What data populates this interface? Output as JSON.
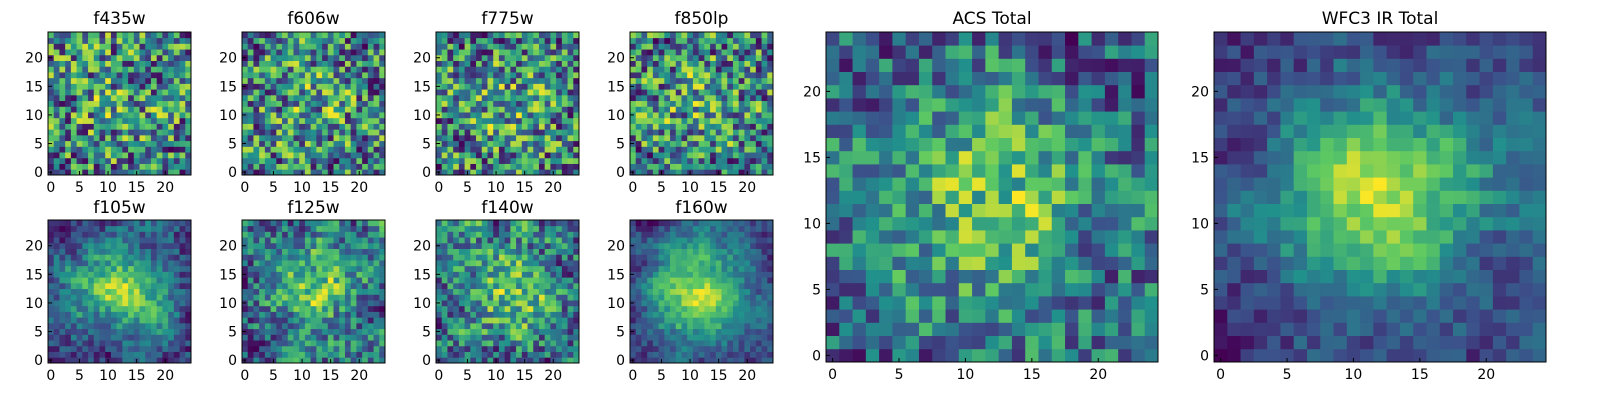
{
  "chart_data": [
    {
      "type": "heatmap",
      "title": "f435w",
      "n": 25,
      "seed": 11,
      "colormap": "viridis",
      "x_ticks": [
        0,
        5,
        10,
        15,
        20
      ],
      "y_ticks": [
        0,
        5,
        10,
        15,
        20
      ],
      "xlim": [
        0,
        24
      ],
      "ylim": [
        0,
        24
      ],
      "smooth": 0.15,
      "blob": 0.1,
      "noise": 0.75,
      "grid": false
    },
    {
      "type": "heatmap",
      "title": "f606w",
      "n": 25,
      "seed": 12,
      "colormap": "viridis",
      "x_ticks": [
        0,
        5,
        10,
        15,
        20
      ],
      "y_ticks": [
        0,
        5,
        10,
        15,
        20
      ],
      "xlim": [
        0,
        24
      ],
      "ylim": [
        0,
        24
      ],
      "smooth": 0.15,
      "blob": 0.12,
      "noise": 0.73,
      "grid": false
    },
    {
      "type": "heatmap",
      "title": "f775w",
      "n": 25,
      "seed": 13,
      "colormap": "viridis",
      "x_ticks": [
        0,
        5,
        10,
        15,
        20
      ],
      "y_ticks": [
        0,
        5,
        10,
        15,
        20
      ],
      "xlim": [
        0,
        24
      ],
      "ylim": [
        0,
        24
      ],
      "smooth": 0.18,
      "blob": 0.15,
      "noise": 0.67,
      "grid": false
    },
    {
      "type": "heatmap",
      "title": "f850lp",
      "n": 25,
      "seed": 14,
      "colormap": "viridis",
      "x_ticks": [
        0,
        5,
        10,
        15,
        20
      ],
      "y_ticks": [
        0,
        5,
        10,
        15,
        20
      ],
      "xlim": [
        0,
        24
      ],
      "ylim": [
        0,
        24
      ],
      "smooth": 0.15,
      "blob": 0.12,
      "noise": 0.73,
      "grid": false
    },
    {
      "type": "heatmap",
      "title": "f105w",
      "n": 25,
      "seed": 21,
      "colormap": "viridis",
      "x_ticks": [
        0,
        5,
        10,
        15,
        20
      ],
      "y_ticks": [
        0,
        5,
        10,
        15,
        20
      ],
      "xlim": [
        0,
        24
      ],
      "ylim": [
        0,
        24
      ],
      "smooth": 0.45,
      "blob": 0.35,
      "noise": 0.2,
      "grid": false
    },
    {
      "type": "heatmap",
      "title": "f125w",
      "n": 25,
      "seed": 22,
      "colormap": "viridis",
      "x_ticks": [
        0,
        5,
        10,
        15,
        20
      ],
      "y_ticks": [
        0,
        5,
        10,
        15,
        20
      ],
      "xlim": [
        0,
        24
      ],
      "ylim": [
        0,
        24
      ],
      "smooth": 0.5,
      "blob": 0.2,
      "noise": 0.3,
      "grid": false
    },
    {
      "type": "heatmap",
      "title": "f140w",
      "n": 25,
      "seed": 23,
      "colormap": "viridis",
      "x_ticks": [
        0,
        5,
        10,
        15,
        20
      ],
      "y_ticks": [
        0,
        5,
        10,
        15,
        20
      ],
      "xlim": [
        0,
        24
      ],
      "ylim": [
        0,
        24
      ],
      "smooth": 0.5,
      "blob": 0.2,
      "noise": 0.3,
      "grid": false
    },
    {
      "type": "heatmap",
      "title": "f160w",
      "n": 25,
      "seed": 24,
      "colormap": "viridis",
      "x_ticks": [
        0,
        5,
        10,
        15,
        20
      ],
      "y_ticks": [
        0,
        5,
        10,
        15,
        20
      ],
      "xlim": [
        0,
        24
      ],
      "ylim": [
        0,
        24
      ],
      "smooth": 0.45,
      "blob": 0.4,
      "noise": 0.15,
      "grid": false
    },
    {
      "type": "heatmap",
      "title": "ACS Total",
      "n": 25,
      "seed": 31,
      "colormap": "viridis",
      "x_ticks": [
        0,
        5,
        10,
        15,
        20
      ],
      "y_ticks": [
        0,
        5,
        10,
        15,
        20
      ],
      "xlim": [
        0,
        24
      ],
      "ylim": [
        0,
        24
      ],
      "smooth": 0.3,
      "blob": 0.3,
      "noise": 0.4,
      "grid": false
    },
    {
      "type": "heatmap",
      "title": "WFC3 IR Total",
      "n": 25,
      "seed": 32,
      "colormap": "viridis",
      "x_ticks": [
        0,
        5,
        10,
        15,
        20
      ],
      "y_ticks": [
        0,
        5,
        10,
        15,
        20
      ],
      "xlim": [
        0,
        24
      ],
      "ylim": [
        0,
        24
      ],
      "smooth": 0.4,
      "blob": 0.45,
      "noise": 0.15,
      "grid": false
    }
  ]
}
